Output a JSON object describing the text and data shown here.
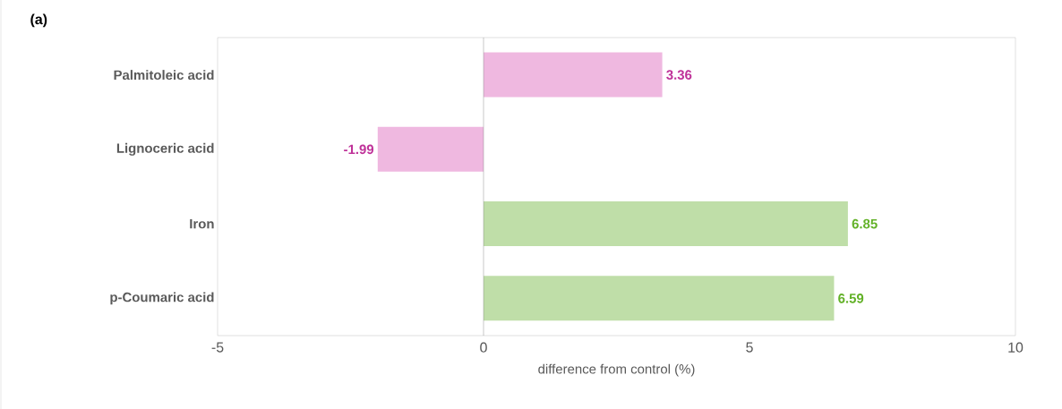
{
  "chart_data": {
    "type": "bar",
    "orientation": "horizontal",
    "categories": [
      "Palmitoleic acid",
      "Lignoceric acid",
      "Iron",
      "p-Coumaric acid"
    ],
    "values": [
      3.36,
      -1.99,
      6.85,
      6.59
    ],
    "colors": [
      "#efb8e0",
      "#efb8e0",
      "#bfdea8",
      "#bfdea8"
    ],
    "xlim": [
      -5,
      10
    ],
    "xticks": [
      -5,
      0,
      5,
      10
    ],
    "xlabel": "difference from control (%)",
    "annotations": [
      "(a)"
    ],
    "data_labels": true
  }
}
